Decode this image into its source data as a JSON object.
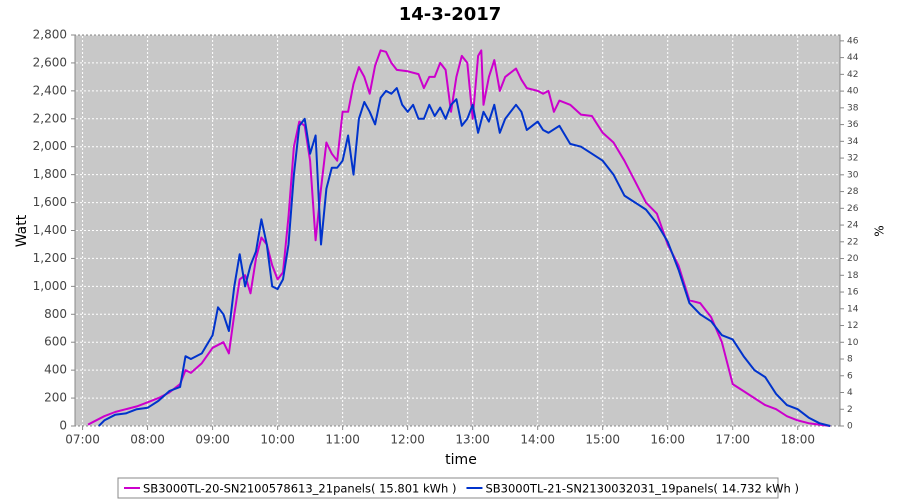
{
  "chart_data": {
    "type": "line",
    "title": "14-3-2017",
    "xlabel": "time",
    "ylabel": "Watt",
    "y2label": "%",
    "xlim": [
      "06:53",
      "18:39"
    ],
    "xticks": [
      "07:00",
      "08:00",
      "09:00",
      "10:00",
      "11:00",
      "12:00",
      "13:00",
      "14:00",
      "15:00",
      "16:00",
      "17:00",
      "18:00"
    ],
    "ylim": [
      0,
      2800
    ],
    "yticks": [
      0,
      200,
      400,
      600,
      800,
      {
        "value": 1000,
        "label": "1,000"
      },
      {
        "value": 1200,
        "label": "1,200"
      },
      {
        "value": 1400,
        "label": "1,400"
      },
      {
        "value": 1600,
        "label": "1,600"
      },
      {
        "value": 1800,
        "label": "1,800"
      },
      {
        "value": 2000,
        "label": "2,000"
      },
      {
        "value": 2200,
        "label": "2,200"
      },
      {
        "value": 2400,
        "label": "2,400"
      },
      {
        "value": 2600,
        "label": "2,600"
      },
      {
        "value": 2800,
        "label": "2,800"
      }
    ],
    "y2lim": [
      0,
      46.7
    ],
    "y2ticks": [
      0,
      2,
      4,
      6,
      8,
      10,
      12,
      14,
      16,
      18,
      20,
      22,
      24,
      26,
      28,
      30,
      32,
      34,
      36,
      38,
      40,
      42,
      44,
      46
    ],
    "grid": true,
    "legend": "bottom",
    "series": [
      {
        "name": "SB3000TL-20-SN2100578613_21panels( 15.801 kWh )",
        "color": "#cc00cc",
        "x": [
          "07:05",
          "07:10",
          "07:20",
          "07:30",
          "07:40",
          "07:50",
          "08:00",
          "08:10",
          "08:20",
          "08:30",
          "08:35",
          "08:40",
          "08:50",
          "09:00",
          "09:10",
          "09:15",
          "09:20",
          "09:25",
          "09:30",
          "09:35",
          "09:40",
          "09:45",
          "09:50",
          "09:55",
          "10:00",
          "10:05",
          "10:10",
          "10:15",
          "10:20",
          "10:25",
          "10:30",
          "10:35",
          "10:40",
          "10:45",
          "10:50",
          "10:55",
          "11:00",
          "11:05",
          "11:10",
          "11:15",
          "11:20",
          "11:25",
          "11:30",
          "11:35",
          "11:40",
          "11:45",
          "11:50",
          "12:00",
          "12:10",
          "12:15",
          "12:20",
          "12:25",
          "12:30",
          "12:35",
          "12:40",
          "12:45",
          "12:50",
          "12:55",
          "13:00",
          "13:05",
          "13:08",
          "13:10",
          "13:15",
          "13:20",
          "13:25",
          "13:30",
          "13:40",
          "13:45",
          "13:50",
          "14:00",
          "14:05",
          "14:10",
          "14:15",
          "14:20",
          "14:30",
          "14:40",
          "14:50",
          "15:00",
          "15:10",
          "15:20",
          "15:30",
          "15:40",
          "15:50",
          "16:00",
          "16:10",
          "16:20",
          "16:30",
          "16:40",
          "16:50",
          "17:00",
          "17:10",
          "17:20",
          "17:30",
          "17:40",
          "17:50",
          "18:00",
          "18:10",
          "18:20",
          "18:30"
        ],
        "values": [
          10,
          30,
          70,
          100,
          120,
          140,
          170,
          200,
          240,
          300,
          400,
          380,
          450,
          560,
          600,
          520,
          800,
          1050,
          1080,
          950,
          1200,
          1350,
          1300,
          1150,
          1050,
          1100,
          1500,
          2000,
          2180,
          2150,
          1900,
          1330,
          1700,
          2030,
          1950,
          1900,
          2250,
          2250,
          2450,
          2570,
          2500,
          2380,
          2580,
          2690,
          2680,
          2600,
          2550,
          2540,
          2520,
          2420,
          2500,
          2500,
          2600,
          2550,
          2250,
          2500,
          2650,
          2600,
          2200,
          2650,
          2690,
          2300,
          2500,
          2620,
          2400,
          2500,
          2560,
          2480,
          2420,
          2400,
          2380,
          2400,
          2250,
          2330,
          2300,
          2230,
          2220,
          2100,
          2030,
          1900,
          1750,
          1600,
          1520,
          1300,
          1150,
          900,
          880,
          780,
          600,
          300,
          250,
          200,
          150,
          120,
          70,
          40,
          20,
          10,
          0
        ]
      },
      {
        "name": "SB3000TL-21-SN2130032031_19panels( 14.732 kWh )",
        "color": "#0033cc",
        "x": [
          "07:15",
          "07:20",
          "07:30",
          "07:40",
          "07:50",
          "08:00",
          "08:10",
          "08:20",
          "08:30",
          "08:35",
          "08:40",
          "08:50",
          "09:00",
          "09:05",
          "09:10",
          "09:15",
          "09:20",
          "09:25",
          "09:30",
          "09:35",
          "09:40",
          "09:45",
          "09:50",
          "09:55",
          "10:00",
          "10:05",
          "10:10",
          "10:15",
          "10:20",
          "10:25",
          "10:30",
          "10:35",
          "10:40",
          "10:45",
          "10:50",
          "10:55",
          "11:00",
          "11:05",
          "11:10",
          "11:15",
          "11:20",
          "11:25",
          "11:30",
          "11:35",
          "11:40",
          "11:45",
          "11:50",
          "11:55",
          "12:00",
          "12:05",
          "12:10",
          "12:15",
          "12:20",
          "12:25",
          "12:30",
          "12:35",
          "12:40",
          "12:45",
          "12:50",
          "12:55",
          "13:00",
          "13:05",
          "13:10",
          "13:15",
          "13:20",
          "13:25",
          "13:30",
          "13:40",
          "13:45",
          "13:50",
          "14:00",
          "14:05",
          "14:10",
          "14:20",
          "14:30",
          "14:40",
          "14:50",
          "15:00",
          "15:10",
          "15:20",
          "15:30",
          "15:40",
          "15:50",
          "16:00",
          "16:10",
          "16:20",
          "16:30",
          "16:40",
          "16:50",
          "17:00",
          "17:10",
          "17:20",
          "17:30",
          "17:40",
          "17:50",
          "18:00",
          "18:10",
          "18:20",
          "18:30"
        ],
        "values": [
          0,
          40,
          80,
          90,
          120,
          130,
          180,
          250,
          280,
          500,
          480,
          520,
          650,
          850,
          800,
          680,
          1000,
          1230,
          1000,
          1150,
          1250,
          1480,
          1300,
          1000,
          980,
          1050,
          1300,
          1800,
          2150,
          2200,
          1950,
          2080,
          1300,
          1700,
          1850,
          1850,
          1900,
          2080,
          1800,
          2200,
          2320,
          2250,
          2160,
          2350,
          2400,
          2380,
          2420,
          2300,
          2250,
          2300,
          2200,
          2200,
          2300,
          2220,
          2280,
          2200,
          2300,
          2340,
          2150,
          2200,
          2300,
          2100,
          2250,
          2180,
          2300,
          2100,
          2200,
          2300,
          2250,
          2120,
          2180,
          2120,
          2100,
          2150,
          2020,
          2000,
          1950,
          1900,
          1800,
          1650,
          1600,
          1550,
          1450,
          1320,
          1120,
          880,
          800,
          750,
          650,
          620,
          500,
          400,
          350,
          230,
          150,
          120,
          60,
          20,
          0
        ]
      }
    ]
  }
}
